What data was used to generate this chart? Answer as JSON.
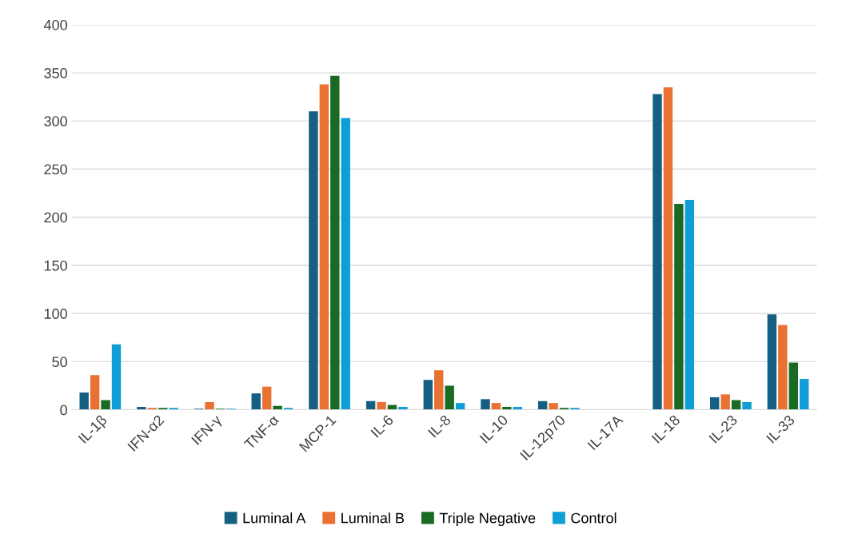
{
  "chart_data": {
    "type": "bar",
    "categories": [
      "IL-1β",
      "IFN-α2",
      "IFN-γ",
      "TNF-α",
      "MCP-1",
      "IL-6",
      "IL-8",
      "IL-10",
      "IL-12p70",
      "IL-17A",
      "IL-18",
      "IL-23",
      "IL-33"
    ],
    "series": [
      {
        "name": "Luminal A",
        "color": "#156082",
        "values": [
          18,
          3,
          1,
          17,
          310,
          9,
          31,
          11,
          9,
          0,
          328,
          13,
          99
        ]
      },
      {
        "name": "Luminal B",
        "color": "#e97132",
        "values": [
          36,
          2,
          8,
          24,
          338,
          8,
          41,
          7,
          7,
          0,
          335,
          16,
          88
        ]
      },
      {
        "name": "Triple Negative",
        "color": "#196b24",
        "values": [
          10,
          2,
          1,
          4,
          347,
          5,
          25,
          3,
          2,
          0,
          214,
          10,
          49
        ]
      },
      {
        "name": "Control",
        "color": "#0f9ed5",
        "values": [
          68,
          2,
          1,
          2,
          303,
          3,
          7,
          3,
          2,
          0,
          218,
          8,
          32
        ]
      }
    ],
    "ylim": [
      0,
      400
    ],
    "yticks": [
      0,
      50,
      100,
      150,
      200,
      250,
      300,
      350,
      400
    ],
    "grid": "y",
    "legend": "bottom"
  }
}
